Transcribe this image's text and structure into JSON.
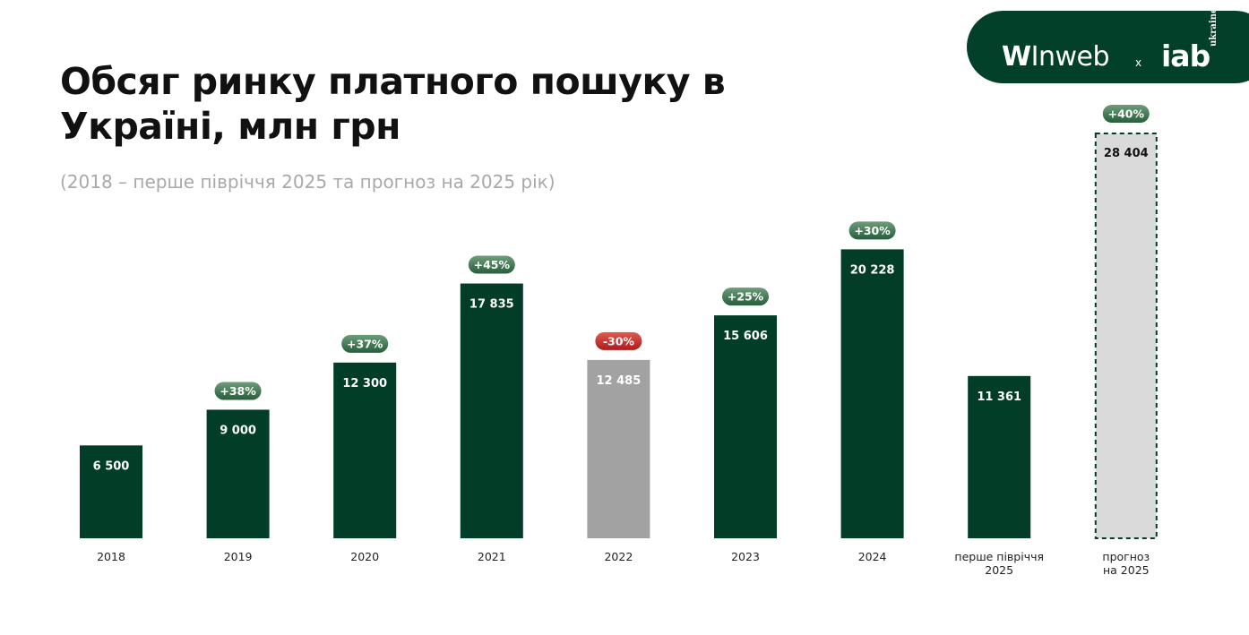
{
  "title": "Обсяг ринку платного пошуку в Україні, млн грн",
  "subtitle": "(2018 – перше півріччя 2025 та прогноз на 2025 рік)",
  "logo": {
    "inweb": "Inweb",
    "separator": "x",
    "iab": "iab",
    "iab_sub": "ukraine"
  },
  "colors": {
    "bar": "#023d28",
    "bar_2022": "#a3a2a2",
    "bar_forecast": "#dadada",
    "badge_growth": "#3f7f55",
    "badge_decline": "#c42227",
    "label_light": "#ffffff",
    "label_dark": "#111111",
    "axis_text": "#222222"
  },
  "chart_data": {
    "type": "bar",
    "categories": [
      "2018",
      "2019",
      "2020",
      "2021",
      "2022",
      "2023",
      "2024",
      "перше півріччя 2025",
      "прогноз на 2025"
    ],
    "category_lines": [
      [
        "2018"
      ],
      [
        "2019"
      ],
      [
        "2020"
      ],
      [
        "2021"
      ],
      [
        "2022"
      ],
      [
        "2023"
      ],
      [
        "2024"
      ],
      [
        "перше півріччя",
        "2025"
      ],
      [
        "прогноз",
        "на 2025"
      ]
    ],
    "values": [
      6500,
      9000,
      12300,
      17835,
      12485,
      15606,
      20228,
      11361,
      28404
    ],
    "value_labels": [
      "6 500",
      "9 000",
      "12 300",
      "17 835",
      "12 485",
      "15 606",
      "20 228",
      "11 361",
      "28 404"
    ],
    "changes": [
      "",
      "+38%",
      "+37%",
      "+45%",
      "-30%",
      "+25%",
      "+30%",
      "",
      "+40%"
    ],
    "bar_styles": [
      "normal",
      "normal",
      "normal",
      "normal",
      "decline",
      "normal",
      "normal",
      "normal",
      "forecast"
    ],
    "ylim": [
      0,
      28404
    ]
  }
}
